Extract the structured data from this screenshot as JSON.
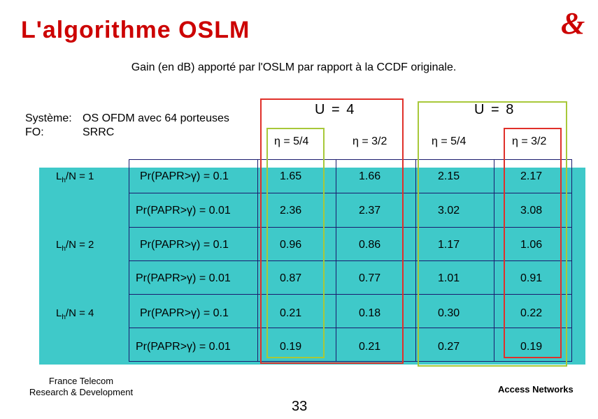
{
  "title": "L'algorithme OSLM",
  "subtitle": "Gain (en dB) apporté par l'OSLM par rapport à la CCDF originale.",
  "system": {
    "line1_label": "Système:",
    "line1_value": "OS OFDM avec 64 porteuses",
    "line2_label": "FO:",
    "line2_value": "SRRC"
  },
  "table": {
    "group_headers": [
      "U = 4",
      "U = 8"
    ],
    "eta_headers": [
      "η = 5/4",
      "η = 3/2",
      "η = 5/4",
      "η = 3/2"
    ],
    "lh_labels": [
      "L",
      "L",
      "L"
    ],
    "lh_subs": [
      "h",
      "h",
      "h"
    ],
    "lh_values": [
      "/N  = 1",
      "/N  = 2",
      "/N  = 4"
    ],
    "rows": [
      {
        "prob": "Pr(PAPR>γ) = 0.1",
        "values": [
          "1.65",
          "1.66",
          "2.15",
          "2.17"
        ]
      },
      {
        "prob": "Pr(PAPR>γ) = 0.01",
        "values": [
          "2.36",
          "2.37",
          "3.02",
          "3.08"
        ]
      },
      {
        "prob": "Pr(PAPR>γ) = 0.1",
        "values": [
          "0.96",
          "0.86",
          "1.17",
          "1.06"
        ]
      },
      {
        "prob": "Pr(PAPR>γ) = 0.01",
        "values": [
          "0.87",
          "0.77",
          "1.01",
          "0.91"
        ]
      },
      {
        "prob": "Pr(PAPR>γ) = 0.1",
        "values": [
          "0.21",
          "0.18",
          "0.30",
          "0.22"
        ]
      },
      {
        "prob": "Pr(PAPR>γ) = 0.01",
        "values": [
          "0.19",
          "0.21",
          "0.27",
          "0.19"
        ]
      }
    ]
  },
  "footer": {
    "left_line1": "France Telecom",
    "left_line2": "Research & Development",
    "right": "Access Networks",
    "page_number": "33"
  },
  "colors": {
    "title": "#cc0000",
    "teal": "#3fc9c9",
    "frame_red": "#e0302a",
    "frame_green": "#a8c83a",
    "grid": "#1a1a6e"
  },
  "icons": {
    "logo": "ampersand-logo-icon"
  }
}
